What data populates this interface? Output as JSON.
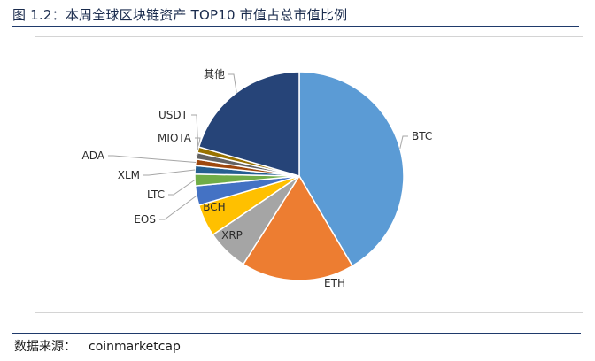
{
  "title": "图 1.2：本周全球区块链资产 TOP10 市值占总市值比例",
  "source": {
    "label": "数据来源：",
    "value": "coinmarketcap"
  },
  "chart_data": {
    "type": "pie",
    "title": "",
    "legend": "none",
    "slices": [
      {
        "name": "BTC",
        "value": 41.5,
        "color": "#5b9bd5"
      },
      {
        "name": "ETH",
        "value": 17.5,
        "color": "#ed7d31"
      },
      {
        "name": "XRP",
        "value": 6.5,
        "color": "#a5a5a5"
      },
      {
        "name": "BCH",
        "value": 5.0,
        "color": "#ffc000"
      },
      {
        "name": "EOS",
        "value": 3.0,
        "color": "#4472c4"
      },
      {
        "name": "LTC",
        "value": 1.8,
        "color": "#70ad47"
      },
      {
        "name": "XLM",
        "value": 1.3,
        "color": "#255e91"
      },
      {
        "name": "ADA",
        "value": 1.0,
        "color": "#9e480e"
      },
      {
        "name": "MIOTA",
        "value": 1.0,
        "color": "#636363"
      },
      {
        "name": "USDT",
        "value": 0.9,
        "color": "#997300"
      },
      {
        "name": "其他",
        "value": 20.5,
        "color": "#264478"
      }
    ]
  }
}
